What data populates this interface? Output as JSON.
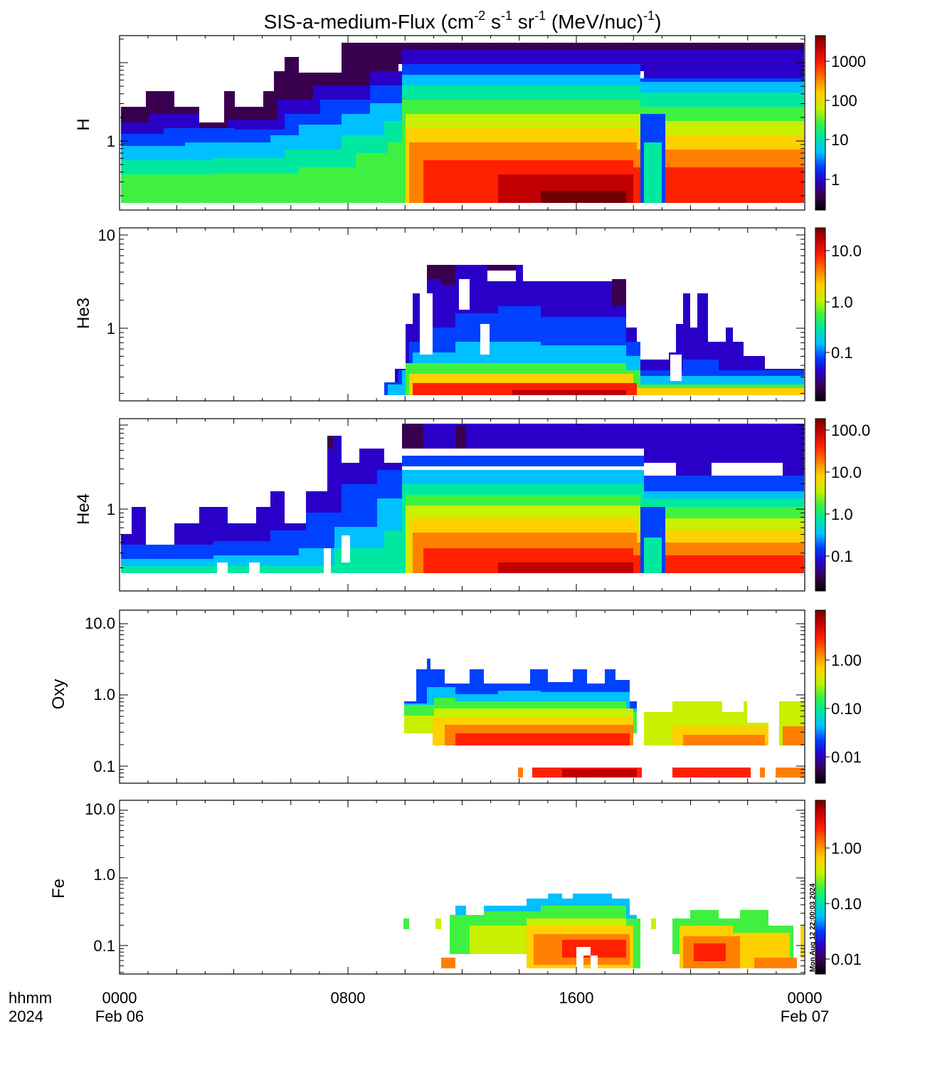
{
  "chart_data": {
    "type": "heatmap",
    "title": {
      "main": "SIS-a-medium-Flux (cm",
      "exp1": "-2",
      "s": " s",
      "exp2": "-1",
      "sr": " sr",
      "exp3": "-1",
      "unit": " (MeV/nuc)",
      "exp4": "-1",
      "close": ")"
    },
    "x_axis": {
      "labels": [
        "0000",
        "0800",
        "1600",
        "0000"
      ],
      "row_label_time": "hhmm",
      "row_label_year": "2024",
      "date_start": "Feb 06",
      "date_end": "Feb 07"
    },
    "colors": {
      "scale": [
        "#000000",
        "#3a0050",
        "#2a00c8",
        "#0040ff",
        "#00c0ff",
        "#00e8a0",
        "#40f040",
        "#c8f000",
        "#ffd000",
        "#ff8000",
        "#ff2000",
        "#c00000",
        "#700000"
      ]
    },
    "timestamp": "Mon Aug 12 22:00:03 2024",
    "panels": [
      {
        "species": "H",
        "ytick_labels": [
          "1"
        ],
        "colorbar_labels": [
          "1000",
          "100",
          "10",
          "1"
        ]
      },
      {
        "species": "He3",
        "ytick_labels": [
          "10",
          "1"
        ],
        "colorbar_labels": [
          "10.0",
          "1.0",
          "0.1"
        ]
      },
      {
        "species": "He4",
        "ytick_labels": [
          "1"
        ],
        "colorbar_labels": [
          "100.0",
          "10.0",
          "1.0",
          "0.1"
        ]
      },
      {
        "species": "Oxy",
        "ytick_labels": [
          "10.0",
          "1.0",
          "0.1"
        ],
        "colorbar_labels": [
          "1.00",
          "0.10",
          "0.01"
        ]
      },
      {
        "species": "Fe",
        "ytick_labels": [
          "10.0",
          "1.0",
          "0.1"
        ],
        "colorbar_labels": [
          "1.00",
          "0.10",
          "0.01"
        ]
      }
    ]
  }
}
